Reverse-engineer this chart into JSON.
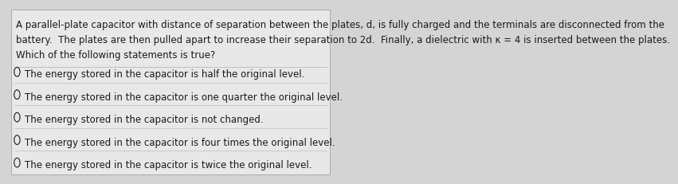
{
  "background_color": "#d4d4d4",
  "panel_color": "#e8e8e8",
  "paragraph": "A parallel-plate capacitor with distance of separation between the plates, d, is fully charged and the terminals are disconnected from the\nbattery.  The plates are then pulled apart to increase their separation to 2d.  Finally, a dielectric with κ = 4 is inserted between the plates.\nWhich of the following statements is true?",
  "options": [
    "The energy stored in the capacitor is half the original level.",
    "The energy stored in the capacitor is one quarter the original level.",
    "The energy stored in the capacitor is not changed.",
    "The energy stored in the capacitor is four times the original level.",
    "The energy stored in the capacitor is twice the original level."
  ],
  "text_color": "#1a1a1a",
  "font_size_paragraph": 8.5,
  "font_size_options": 8.5,
  "divider_color": "#b0b0b0"
}
